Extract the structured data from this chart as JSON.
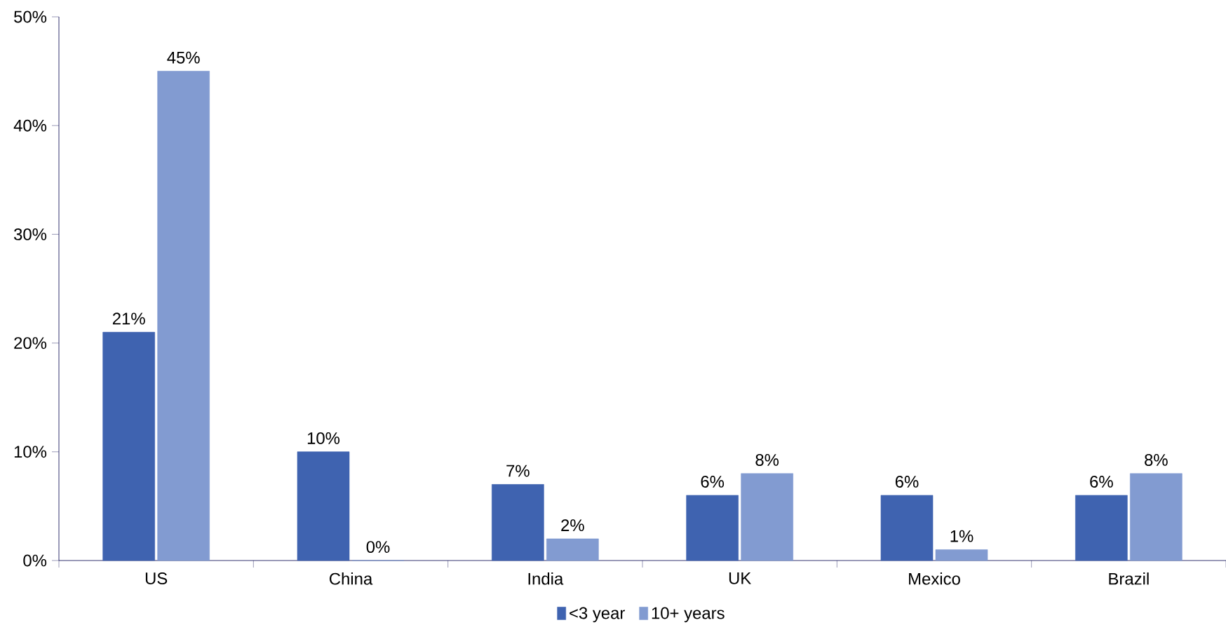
{
  "chart_data": {
    "type": "bar",
    "categories": [
      "US",
      "China",
      "India",
      "UK",
      "Mexico",
      "Brazil"
    ],
    "series": [
      {
        "name": "<3 year",
        "color": "#3f63b0",
        "values": [
          21,
          10,
          7,
          6,
          6,
          6
        ],
        "value_labels": [
          "21%",
          "10%",
          "7%",
          "6%",
          "6%",
          "6%"
        ]
      },
      {
        "name": "10+ years",
        "color": "#829bd1",
        "values": [
          45,
          0,
          2,
          8,
          1,
          8
        ],
        "value_labels": [
          "45%",
          "0%",
          "2%",
          "8%",
          "1%",
          "8%"
        ]
      }
    ],
    "ylim": [
      0,
      50
    ],
    "yticks": [
      {
        "value": 0,
        "label": "0%"
      },
      {
        "value": 10,
        "label": "10%"
      },
      {
        "value": 20,
        "label": "20%"
      },
      {
        "value": 30,
        "label": "30%"
      },
      {
        "value": 40,
        "label": "40%"
      },
      {
        "value": 50,
        "label": "50%"
      }
    ],
    "grid": false,
    "legend": "bottom"
  }
}
